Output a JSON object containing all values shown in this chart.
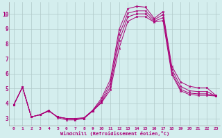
{
  "xlabel": "Windchill (Refroidissement éolien,°C)",
  "background_color": "#d4eeee",
  "grid_color": "#b0c8c8",
  "line_color": "#aa0077",
  "xlim": [
    -0.5,
    23.5
  ],
  "ylim": [
    2.5,
    10.8
  ],
  "yticks": [
    3,
    4,
    5,
    6,
    7,
    8,
    9,
    10
  ],
  "xticks": [
    0,
    1,
    2,
    3,
    4,
    5,
    6,
    7,
    8,
    9,
    10,
    11,
    12,
    13,
    14,
    15,
    16,
    17,
    18,
    19,
    20,
    21,
    22,
    23
  ],
  "lines": [
    [
      3.9,
      5.1,
      3.1,
      3.25,
      3.55,
      3.05,
      2.9,
      2.9,
      3.0,
      3.55,
      4.35,
      5.6,
      8.95,
      10.35,
      10.5,
      10.45,
      9.7,
      10.15,
      6.5,
      5.45,
      5.15,
      5.05,
      5.05,
      4.55
    ],
    [
      3.9,
      5.1,
      3.1,
      3.25,
      3.5,
      3.1,
      3.0,
      3.0,
      3.05,
      3.55,
      4.2,
      5.35,
      8.6,
      10.05,
      10.2,
      10.2,
      9.6,
      9.95,
      6.3,
      5.15,
      4.85,
      4.8,
      4.8,
      4.5
    ],
    [
      3.9,
      5.1,
      3.1,
      3.25,
      3.5,
      3.1,
      3.0,
      2.95,
      3.0,
      3.5,
      4.1,
      5.1,
      8.2,
      9.8,
      10.0,
      10.0,
      9.5,
      9.75,
      6.1,
      4.95,
      4.7,
      4.65,
      4.65,
      4.5
    ],
    [
      3.9,
      5.1,
      3.1,
      3.25,
      3.5,
      3.1,
      3.0,
      2.95,
      3.0,
      3.5,
      4.05,
      4.9,
      7.7,
      9.5,
      9.8,
      9.8,
      9.45,
      9.55,
      5.95,
      4.85,
      4.6,
      4.55,
      4.55,
      4.5
    ]
  ]
}
